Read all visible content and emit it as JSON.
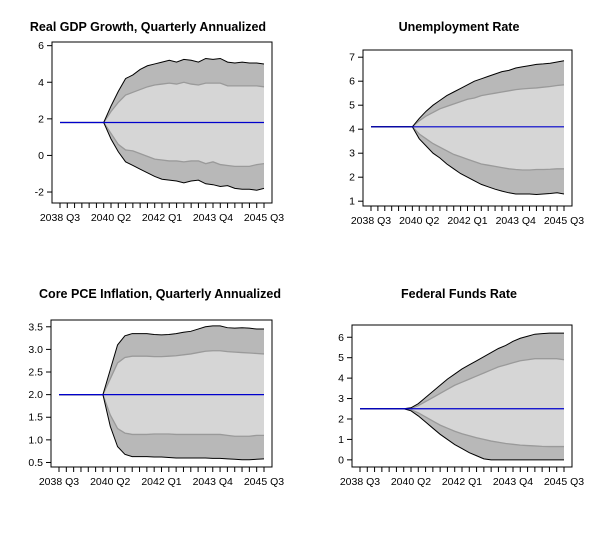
{
  "chart_data": [
    {
      "type": "area",
      "title": "Real GDP Growth, Quarterly Annualized",
      "xlabel": "",
      "ylabel": "",
      "x_tick_labels": [
        "2038 Q3",
        "2040 Q2",
        "2042 Q1",
        "2043 Q4",
        "2045 Q3"
      ],
      "y_ticks": [
        -2,
        0,
        2,
        4,
        6
      ],
      "ylim": [
        -2.6,
        6.2
      ],
      "band_colors": {
        "outer": "#b8b8b8",
        "inner": "#d6d6d6",
        "inner_edge": "#9a9a9a",
        "outer_edge": "#000000",
        "median": "#0000cc"
      },
      "x": [
        "2038 Q3",
        "2038 Q4",
        "2039 Q1",
        "2039 Q2",
        "2039 Q3",
        "2039 Q4",
        "2040 Q1",
        "2040 Q2",
        "2040 Q3",
        "2040 Q4",
        "2041 Q1",
        "2041 Q2",
        "2041 Q3",
        "2041 Q4",
        "2042 Q1",
        "2042 Q2",
        "2042 Q3",
        "2042 Q4",
        "2043 Q1",
        "2043 Q2",
        "2043 Q3",
        "2043 Q4",
        "2044 Q1",
        "2044 Q2",
        "2044 Q3",
        "2044 Q4",
        "2045 Q1",
        "2045 Q2",
        "2045 Q3"
      ],
      "series": [
        {
          "name": "",
          "role": "outer_upper",
          "values": [
            1.8,
            1.8,
            1.8,
            1.8,
            1.8,
            1.8,
            1.8,
            2.7,
            3.5,
            4.2,
            4.4,
            4.7,
            4.9,
            5.0,
            5.1,
            5.2,
            5.1,
            5.25,
            5.2,
            5.1,
            5.3,
            5.25,
            5.3,
            5.1,
            5.05,
            5.1,
            5.05,
            5.05,
            5.0
          ]
        },
        {
          "name": "",
          "role": "inner_upper",
          "values": [
            1.8,
            1.8,
            1.8,
            1.8,
            1.8,
            1.8,
            1.8,
            2.4,
            2.9,
            3.3,
            3.45,
            3.6,
            3.75,
            3.85,
            3.9,
            3.95,
            3.9,
            4.0,
            3.9,
            3.85,
            3.95,
            3.95,
            3.95,
            3.8,
            3.8,
            3.8,
            3.8,
            3.8,
            3.75
          ]
        },
        {
          "name": "",
          "role": "median",
          "values": [
            1.8,
            1.8,
            1.8,
            1.8,
            1.8,
            1.8,
            1.8,
            1.8,
            1.8,
            1.8,
            1.8,
            1.8,
            1.8,
            1.8,
            1.8,
            1.8,
            1.8,
            1.8,
            1.8,
            1.8,
            1.8,
            1.8,
            1.8,
            1.8,
            1.8,
            1.8,
            1.8,
            1.8,
            1.8
          ]
        },
        {
          "name": "",
          "role": "inner_lower",
          "values": [
            1.8,
            1.8,
            1.8,
            1.8,
            1.8,
            1.8,
            1.8,
            1.2,
            0.6,
            0.3,
            0.25,
            0.1,
            -0.05,
            -0.2,
            -0.25,
            -0.3,
            -0.3,
            -0.35,
            -0.3,
            -0.3,
            -0.45,
            -0.35,
            -0.5,
            -0.55,
            -0.6,
            -0.6,
            -0.6,
            -0.5,
            -0.45
          ]
        },
        {
          "name": "",
          "role": "outer_lower",
          "values": [
            1.8,
            1.8,
            1.8,
            1.8,
            1.8,
            1.8,
            1.8,
            0.9,
            0.2,
            -0.35,
            -0.55,
            -0.75,
            -0.95,
            -1.15,
            -1.3,
            -1.35,
            -1.4,
            -1.5,
            -1.4,
            -1.35,
            -1.55,
            -1.6,
            -1.7,
            -1.65,
            -1.8,
            -1.85,
            -1.85,
            -1.9,
            -1.8
          ]
        }
      ]
    },
    {
      "type": "area",
      "title": "Unemployment Rate",
      "xlabel": "",
      "ylabel": "",
      "x_tick_labels": [
        "2038 Q3",
        "2040 Q2",
        "2042 Q1",
        "2043 Q4",
        "2045 Q3"
      ],
      "y_ticks": [
        1,
        2,
        3,
        4,
        5,
        6,
        7
      ],
      "ylim": [
        0.8,
        7.3
      ],
      "band_colors": {
        "outer": "#b8b8b8",
        "inner": "#d6d6d6",
        "inner_edge": "#9a9a9a",
        "outer_edge": "#000000",
        "median": "#0000cc"
      },
      "x": [
        "2038 Q3",
        "2038 Q4",
        "2039 Q1",
        "2039 Q2",
        "2039 Q3",
        "2039 Q4",
        "2040 Q1",
        "2040 Q2",
        "2040 Q3",
        "2040 Q4",
        "2041 Q1",
        "2041 Q2",
        "2041 Q3",
        "2041 Q4",
        "2042 Q1",
        "2042 Q2",
        "2042 Q3",
        "2042 Q4",
        "2043 Q1",
        "2043 Q2",
        "2043 Q3",
        "2043 Q4",
        "2044 Q1",
        "2044 Q2",
        "2044 Q3",
        "2044 Q4",
        "2045 Q1",
        "2045 Q2",
        "2045 Q3"
      ],
      "series": [
        {
          "name": "",
          "role": "outer_upper",
          "values": [
            4.1,
            4.1,
            4.1,
            4.1,
            4.1,
            4.1,
            4.1,
            4.45,
            4.75,
            5.0,
            5.2,
            5.4,
            5.55,
            5.7,
            5.85,
            6.0,
            6.1,
            6.2,
            6.3,
            6.4,
            6.45,
            6.55,
            6.6,
            6.65,
            6.7,
            6.72,
            6.75,
            6.8,
            6.85
          ]
        },
        {
          "name": "",
          "role": "inner_upper",
          "values": [
            4.1,
            4.1,
            4.1,
            4.1,
            4.1,
            4.1,
            4.1,
            4.35,
            4.55,
            4.7,
            4.85,
            4.95,
            5.05,
            5.15,
            5.25,
            5.3,
            5.4,
            5.45,
            5.5,
            5.55,
            5.6,
            5.65,
            5.68,
            5.7,
            5.72,
            5.75,
            5.78,
            5.82,
            5.85
          ]
        },
        {
          "name": "",
          "role": "median",
          "values": [
            4.1,
            4.1,
            4.1,
            4.1,
            4.1,
            4.1,
            4.1,
            4.1,
            4.1,
            4.1,
            4.1,
            4.1,
            4.1,
            4.1,
            4.1,
            4.1,
            4.1,
            4.1,
            4.1,
            4.1,
            4.1,
            4.1,
            4.1,
            4.1,
            4.1,
            4.1,
            4.1,
            4.1,
            4.1
          ]
        },
        {
          "name": "",
          "role": "inner_lower",
          "values": [
            4.1,
            4.1,
            4.1,
            4.1,
            4.1,
            4.1,
            4.1,
            3.8,
            3.6,
            3.4,
            3.25,
            3.1,
            2.95,
            2.85,
            2.75,
            2.65,
            2.55,
            2.5,
            2.45,
            2.4,
            2.35,
            2.32,
            2.3,
            2.3,
            2.32,
            2.32,
            2.33,
            2.35,
            2.35
          ]
        },
        {
          "name": "",
          "role": "outer_lower",
          "values": [
            4.1,
            4.1,
            4.1,
            4.1,
            4.1,
            4.1,
            4.1,
            3.6,
            3.3,
            3.0,
            2.8,
            2.55,
            2.35,
            2.15,
            2.0,
            1.85,
            1.7,
            1.6,
            1.5,
            1.42,
            1.35,
            1.3,
            1.3,
            1.3,
            1.28,
            1.3,
            1.32,
            1.35,
            1.3
          ]
        }
      ]
    },
    {
      "type": "area",
      "title": "Core PCE Inflation, Quarterly Annualized",
      "xlabel": "",
      "ylabel": "",
      "x_tick_labels": [
        "2038 Q3",
        "2040 Q2",
        "2042 Q1",
        "2043 Q4",
        "2045 Q3"
      ],
      "y_ticks": [
        0.5,
        1.0,
        1.5,
        2.0,
        2.5,
        3.0,
        3.5
      ],
      "y_tick_labels": [
        "0.5",
        "1.0",
        "1.5",
        "2.0",
        "2.5",
        "3.0",
        "3.5"
      ],
      "ylim": [
        0.4,
        3.65
      ],
      "band_colors": {
        "outer": "#b8b8b8",
        "inner": "#d6d6d6",
        "inner_edge": "#9a9a9a",
        "outer_edge": "#000000",
        "median": "#0000cc"
      },
      "x": [
        "2038 Q3",
        "2038 Q4",
        "2039 Q1",
        "2039 Q2",
        "2039 Q3",
        "2039 Q4",
        "2040 Q1",
        "2040 Q2",
        "2040 Q3",
        "2040 Q4",
        "2041 Q1",
        "2041 Q2",
        "2041 Q3",
        "2041 Q4",
        "2042 Q1",
        "2042 Q2",
        "2042 Q3",
        "2042 Q4",
        "2043 Q1",
        "2043 Q2",
        "2043 Q3",
        "2043 Q4",
        "2044 Q1",
        "2044 Q2",
        "2044 Q3",
        "2044 Q4",
        "2045 Q1",
        "2045 Q2",
        "2045 Q3"
      ],
      "series": [
        {
          "name": "",
          "role": "outer_upper",
          "values": [
            2.0,
            2.0,
            2.0,
            2.0,
            2.0,
            2.0,
            2.0,
            2.55,
            3.1,
            3.3,
            3.35,
            3.35,
            3.35,
            3.33,
            3.32,
            3.33,
            3.35,
            3.38,
            3.4,
            3.45,
            3.5,
            3.52,
            3.52,
            3.48,
            3.47,
            3.48,
            3.47,
            3.45,
            3.45
          ]
        },
        {
          "name": "",
          "role": "inner_upper",
          "values": [
            2.0,
            2.0,
            2.0,
            2.0,
            2.0,
            2.0,
            2.0,
            2.35,
            2.7,
            2.82,
            2.85,
            2.85,
            2.85,
            2.84,
            2.84,
            2.85,
            2.86,
            2.88,
            2.9,
            2.93,
            2.96,
            2.97,
            2.97,
            2.95,
            2.94,
            2.93,
            2.92,
            2.91,
            2.9
          ]
        },
        {
          "name": "",
          "role": "median",
          "values": [
            2.0,
            2.0,
            2.0,
            2.0,
            2.0,
            2.0,
            2.0,
            2.0,
            2.0,
            2.0,
            2.0,
            2.0,
            2.0,
            2.0,
            2.0,
            2.0,
            2.0,
            2.0,
            2.0,
            2.0,
            2.0,
            2.0,
            2.0,
            2.0,
            2.0,
            2.0,
            2.0,
            2.0,
            2.0
          ]
        },
        {
          "name": "",
          "role": "inner_lower",
          "values": [
            2.0,
            2.0,
            2.0,
            2.0,
            2.0,
            2.0,
            2.0,
            1.55,
            1.25,
            1.15,
            1.12,
            1.12,
            1.12,
            1.13,
            1.13,
            1.13,
            1.12,
            1.12,
            1.12,
            1.12,
            1.12,
            1.12,
            1.12,
            1.1,
            1.08,
            1.08,
            1.08,
            1.1,
            1.1
          ]
        },
        {
          "name": "",
          "role": "outer_lower",
          "values": [
            2.0,
            2.0,
            2.0,
            2.0,
            2.0,
            2.0,
            2.0,
            1.3,
            0.85,
            0.68,
            0.63,
            0.63,
            0.63,
            0.62,
            0.62,
            0.61,
            0.6,
            0.6,
            0.6,
            0.6,
            0.6,
            0.59,
            0.59,
            0.58,
            0.57,
            0.56,
            0.56,
            0.57,
            0.58
          ]
        }
      ]
    },
    {
      "type": "area",
      "title": "Federal Funds Rate",
      "xlabel": "",
      "ylabel": "",
      "x_tick_labels": [
        "2038 Q3",
        "2040 Q2",
        "2042 Q1",
        "2043 Q4",
        "2045 Q3"
      ],
      "y_ticks": [
        0,
        1,
        2,
        3,
        4,
        5,
        6
      ],
      "ylim": [
        -0.35,
        6.6
      ],
      "band_colors": {
        "outer": "#b8b8b8",
        "inner": "#d6d6d6",
        "inner_edge": "#9a9a9a",
        "outer_edge": "#000000",
        "median": "#0000cc"
      },
      "x": [
        "2038 Q3",
        "2038 Q4",
        "2039 Q1",
        "2039 Q2",
        "2039 Q3",
        "2039 Q4",
        "2040 Q1",
        "2040 Q2",
        "2040 Q3",
        "2040 Q4",
        "2041 Q1",
        "2041 Q2",
        "2041 Q3",
        "2041 Q4",
        "2042 Q1",
        "2042 Q2",
        "2042 Q3",
        "2042 Q4",
        "2043 Q1",
        "2043 Q2",
        "2043 Q3",
        "2043 Q4",
        "2044 Q1",
        "2044 Q2",
        "2044 Q3",
        "2044 Q4",
        "2045 Q1",
        "2045 Q2",
        "2045 Q3"
      ],
      "series": [
        {
          "name": "",
          "role": "outer_upper",
          "values": [
            2.5,
            2.5,
            2.5,
            2.5,
            2.5,
            2.5,
            2.5,
            2.55,
            2.75,
            3.05,
            3.35,
            3.65,
            3.95,
            4.2,
            4.45,
            4.65,
            4.85,
            5.05,
            5.25,
            5.45,
            5.6,
            5.8,
            5.95,
            6.05,
            6.15,
            6.18,
            6.2,
            6.2,
            6.2
          ]
        },
        {
          "name": "",
          "role": "inner_upper",
          "values": [
            2.5,
            2.5,
            2.5,
            2.5,
            2.5,
            2.5,
            2.5,
            2.52,
            2.65,
            2.85,
            3.05,
            3.25,
            3.45,
            3.65,
            3.8,
            3.95,
            4.1,
            4.25,
            4.4,
            4.55,
            4.65,
            4.75,
            4.85,
            4.9,
            4.95,
            4.95,
            4.95,
            4.95,
            4.9
          ]
        },
        {
          "name": "",
          "role": "median",
          "values": [
            2.5,
            2.5,
            2.5,
            2.5,
            2.5,
            2.5,
            2.5,
            2.5,
            2.5,
            2.5,
            2.5,
            2.5,
            2.5,
            2.5,
            2.5,
            2.5,
            2.5,
            2.5,
            2.5,
            2.5,
            2.5,
            2.5,
            2.5,
            2.5,
            2.5,
            2.5,
            2.5,
            2.5,
            2.5
          ]
        },
        {
          "name": "",
          "role": "inner_lower",
          "values": [
            2.5,
            2.5,
            2.5,
            2.5,
            2.5,
            2.5,
            2.5,
            2.45,
            2.3,
            2.1,
            1.9,
            1.7,
            1.55,
            1.4,
            1.28,
            1.18,
            1.08,
            1.0,
            0.92,
            0.86,
            0.8,
            0.76,
            0.72,
            0.7,
            0.68,
            0.66,
            0.65,
            0.65,
            0.65
          ]
        },
        {
          "name": "",
          "role": "outer_lower",
          "values": [
            2.5,
            2.5,
            2.5,
            2.5,
            2.5,
            2.5,
            2.5,
            2.4,
            2.15,
            1.85,
            1.55,
            1.25,
            1.0,
            0.75,
            0.55,
            0.35,
            0.2,
            0.05,
            0.0,
            0.0,
            0.0,
            0.0,
            0.0,
            0.0,
            0.0,
            0.0,
            0.0,
            0.0,
            0.0
          ]
        }
      ]
    }
  ]
}
